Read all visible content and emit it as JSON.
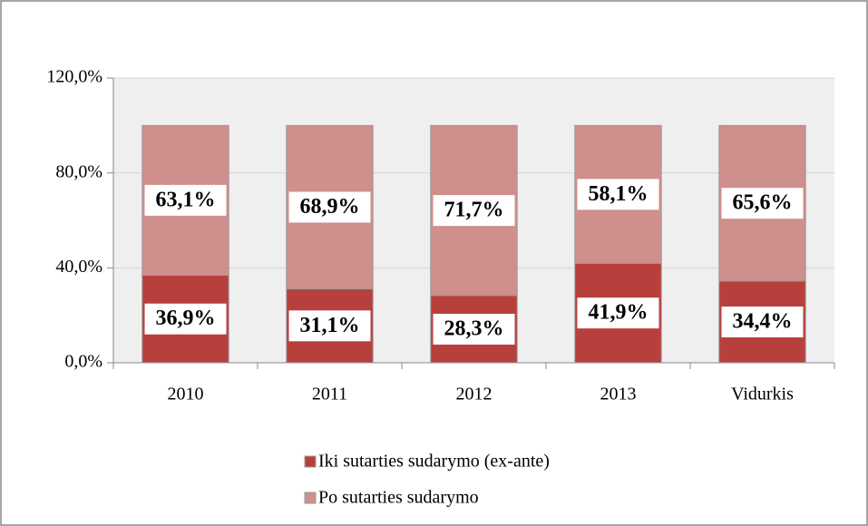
{
  "chart_data": {
    "type": "stacked_bar",
    "categories": [
      "2010",
      "2011",
      "2012",
      "2013",
      "Vidurkis"
    ],
    "series": [
      {
        "name": "Iki sutarties sudarymo (ex-ante)",
        "color": "#b8403c",
        "values": [
          36.9,
          31.1,
          28.3,
          41.9,
          34.4
        ],
        "value_labels": [
          "36,9%",
          "31,1%",
          "28,3%",
          "41,9%",
          "34,4%"
        ]
      },
      {
        "name": "Po sutarties sudarymo",
        "color": "#cf8f8d",
        "values": [
          63.1,
          68.9,
          71.7,
          58.1,
          65.6
        ],
        "value_labels": [
          "63,1%",
          "68,9%",
          "71,7%",
          "58,1%",
          "65,6%"
        ]
      }
    ],
    "ylim": [
      0,
      120
    ],
    "yticks": [
      {
        "value": 0,
        "label": "0,0%"
      },
      {
        "value": 40,
        "label": "40,0%"
      },
      {
        "value": 80,
        "label": "80,0%"
      },
      {
        "value": 120,
        "label": "120,0%"
      }
    ],
    "grid": true
  }
}
